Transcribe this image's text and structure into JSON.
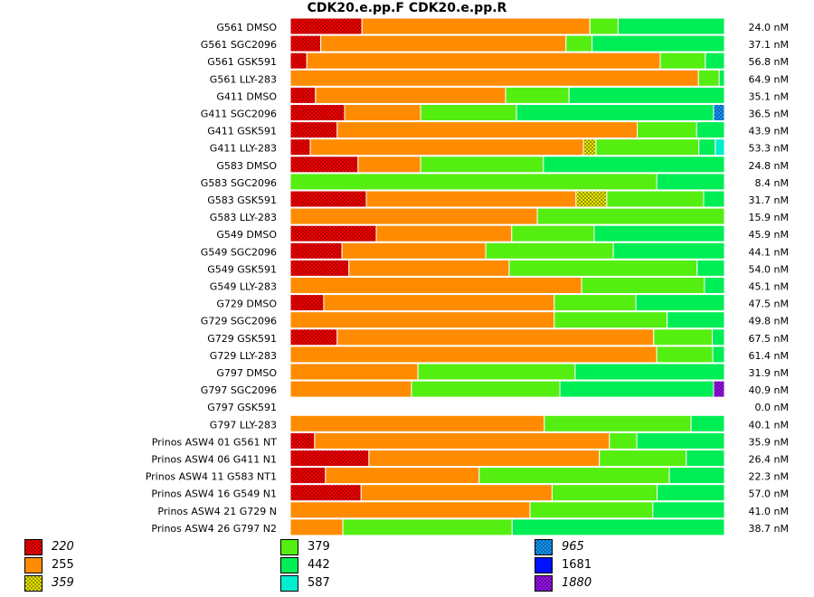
{
  "chart_data": {
    "type": "bar",
    "orientation": "horizontal-stacked-percent",
    "title": "CDK20.e.pp.F  CDK20.e.pp.R",
    "xlim": [
      0,
      100
    ],
    "unit": "nM",
    "legend": [
      {
        "label": "220",
        "color": "#ff0000",
        "pattern": "check",
        "italic": true
      },
      {
        "label": "255",
        "color": "#ff8c00",
        "pattern": "solid",
        "italic": false
      },
      {
        "label": "359",
        "color": "#e6e600",
        "pattern": "check",
        "italic": true
      },
      {
        "label": "379",
        "color": "#55ee11",
        "pattern": "solid",
        "italic": false
      },
      {
        "label": "442",
        "color": "#00ee55",
        "pattern": "solid",
        "italic": false
      },
      {
        "label": "587",
        "color": "#00eecc",
        "pattern": "solid",
        "italic": false
      },
      {
        "label": "965",
        "color": "#1199ff",
        "pattern": "check",
        "italic": true
      },
      {
        "label": "1681",
        "color": "#0011ff",
        "pattern": "solid",
        "italic": false
      },
      {
        "label": "1880",
        "color": "#9911ee",
        "pattern": "check",
        "italic": true
      }
    ],
    "rows": [
      {
        "label": "G561 DMSO",
        "total": "24.0 nM",
        "segments": [
          {
            "k": 0,
            "v": 16.5
          },
          {
            "k": 1,
            "v": 52.5
          },
          {
            "k": 3,
            "v": 6.5
          },
          {
            "k": 4,
            "v": 24.5
          }
        ]
      },
      {
        "label": "G561 SGC2096",
        "total": "37.1 nM",
        "segments": [
          {
            "k": 0,
            "v": 7.0
          },
          {
            "k": 1,
            "v": 56.5
          },
          {
            "k": 3,
            "v": 6.0
          },
          {
            "k": 4,
            "v": 30.5
          }
        ]
      },
      {
        "label": "G561 GSK591",
        "total": "56.8 nM",
        "segments": [
          {
            "k": 0,
            "v": 3.8
          },
          {
            "k": 1,
            "v": 81.4
          },
          {
            "k": 3,
            "v": 10.4
          },
          {
            "k": 4,
            "v": 4.4
          }
        ]
      },
      {
        "label": "G561 LLY-283",
        "total": "64.9 nM",
        "segments": [
          {
            "k": 1,
            "v": 94.0
          },
          {
            "k": 3,
            "v": 4.8
          },
          {
            "k": 4,
            "v": 1.2
          }
        ]
      },
      {
        "label": "G411 DMSO",
        "total": "35.1 nM",
        "segments": [
          {
            "k": 0,
            "v": 5.8
          },
          {
            "k": 1,
            "v": 43.8
          },
          {
            "k": 3,
            "v": 14.6
          },
          {
            "k": 4,
            "v": 35.8
          }
        ]
      },
      {
        "label": "G411 SGC2096",
        "total": "36.5 nM",
        "segments": [
          {
            "k": 0,
            "v": 12.5
          },
          {
            "k": 1,
            "v": 17.5
          },
          {
            "k": 3,
            "v": 22.1
          },
          {
            "k": 4,
            "v": 45.4
          },
          {
            "k": 6,
            "v": 2.5
          }
        ]
      },
      {
        "label": "G411 GSK591",
        "total": "43.9 nM",
        "segments": [
          {
            "k": 0,
            "v": 10.8
          },
          {
            "k": 1,
            "v": 69.1
          },
          {
            "k": 3,
            "v": 13.7
          },
          {
            "k": 4,
            "v": 6.4
          }
        ]
      },
      {
        "label": "G411 LLY-283",
        "total": "53.3 nM",
        "segments": [
          {
            "k": 0,
            "v": 4.6
          },
          {
            "k": 1,
            "v": 62.9
          },
          {
            "k": 2,
            "v": 2.9
          },
          {
            "k": 3,
            "v": 23.7
          },
          {
            "k": 4,
            "v": 3.8
          },
          {
            "k": 5,
            "v": 2.1
          }
        ]
      },
      {
        "label": "G583 DMSO",
        "total": "24.8 nM",
        "segments": [
          {
            "k": 0,
            "v": 15.6
          },
          {
            "k": 1,
            "v": 14.4
          },
          {
            "k": 3,
            "v": 28.3
          },
          {
            "k": 4,
            "v": 41.7
          }
        ]
      },
      {
        "label": "G583 SGC2096",
        "total": "8.4 nM",
        "segments": [
          {
            "k": 3,
            "v": 84.4
          },
          {
            "k": 4,
            "v": 15.6
          }
        ]
      },
      {
        "label": "G583 GSK591",
        "total": "31.7 nM",
        "segments": [
          {
            "k": 0,
            "v": 17.5
          },
          {
            "k": 1,
            "v": 48.3
          },
          {
            "k": 2,
            "v": 7.1
          },
          {
            "k": 3,
            "v": 22.3
          },
          {
            "k": 4,
            "v": 4.8
          }
        ]
      },
      {
        "label": "G583 LLY-283",
        "total": "15.9 nM",
        "segments": [
          {
            "k": 1,
            "v": 56.9
          },
          {
            "k": 3,
            "v": 43.1
          }
        ]
      },
      {
        "label": "G549 DMSO",
        "total": "45.9 nM",
        "segments": [
          {
            "k": 0,
            "v": 19.8
          },
          {
            "k": 1,
            "v": 31.2
          },
          {
            "k": 3,
            "v": 19.0
          },
          {
            "k": 4,
            "v": 30.0
          }
        ]
      },
      {
        "label": "G549 SGC2096",
        "total": "44.1 nM",
        "segments": [
          {
            "k": 0,
            "v": 11.9
          },
          {
            "k": 1,
            "v": 33.1
          },
          {
            "k": 3,
            "v": 29.4
          },
          {
            "k": 4,
            "v": 25.6
          }
        ]
      },
      {
        "label": "G549 GSK591",
        "total": "54.0 nM",
        "segments": [
          {
            "k": 0,
            "v": 13.5
          },
          {
            "k": 1,
            "v": 36.9
          },
          {
            "k": 3,
            "v": 43.3
          },
          {
            "k": 4,
            "v": 6.3
          }
        ]
      },
      {
        "label": "G549 LLY-283",
        "total": "45.1 nM",
        "segments": [
          {
            "k": 1,
            "v": 67.1
          },
          {
            "k": 3,
            "v": 28.3
          },
          {
            "k": 4,
            "v": 4.6
          }
        ]
      },
      {
        "label": "G729 DMSO",
        "total": "47.5 nM",
        "segments": [
          {
            "k": 0,
            "v": 7.7
          },
          {
            "k": 1,
            "v": 53.1
          },
          {
            "k": 3,
            "v": 18.8
          },
          {
            "k": 4,
            "v": 20.4
          }
        ]
      },
      {
        "label": "G729 SGC2096",
        "total": "49.8 nM",
        "segments": [
          {
            "k": 1,
            "v": 60.8
          },
          {
            "k": 3,
            "v": 26.0
          },
          {
            "k": 4,
            "v": 13.2
          }
        ]
      },
      {
        "label": "G729 GSK591",
        "total": "67.5 nM",
        "segments": [
          {
            "k": 0,
            "v": 10.8
          },
          {
            "k": 1,
            "v": 72.9
          },
          {
            "k": 3,
            "v": 13.5
          },
          {
            "k": 4,
            "v": 2.8
          }
        ]
      },
      {
        "label": "G729 LLY-283",
        "total": "61.4 nM",
        "segments": [
          {
            "k": 1,
            "v": 84.4
          },
          {
            "k": 3,
            "v": 12.9
          },
          {
            "k": 4,
            "v": 2.7
          }
        ]
      },
      {
        "label": "G797 DMSO",
        "total": "31.9 nM",
        "segments": [
          {
            "k": 1,
            "v": 29.4
          },
          {
            "k": 3,
            "v": 36.2
          },
          {
            "k": 4,
            "v": 34.4
          }
        ]
      },
      {
        "label": "G797 SGC2096",
        "total": "40.9 nM",
        "segments": [
          {
            "k": 1,
            "v": 27.9
          },
          {
            "k": 3,
            "v": 34.2
          },
          {
            "k": 4,
            "v": 35.4
          },
          {
            "k": 8,
            "v": 2.5
          }
        ]
      },
      {
        "label": "G797 GSK591",
        "total": "0.0 nM",
        "segments": []
      },
      {
        "label": "G797 LLY-283",
        "total": "40.1 nM",
        "segments": [
          {
            "k": 1,
            "v": 58.5
          },
          {
            "k": 3,
            "v": 33.8
          },
          {
            "k": 4,
            "v": 7.7
          }
        ]
      },
      {
        "label": "Prinos ASW4 01 G561 NT",
        "total": "35.9 nM",
        "segments": [
          {
            "k": 0,
            "v": 5.6
          },
          {
            "k": 1,
            "v": 67.9
          },
          {
            "k": 3,
            "v": 6.3
          },
          {
            "k": 4,
            "v": 20.2
          }
        ]
      },
      {
        "label": "Prinos ASW4 06 G411 N1",
        "total": "26.4 nM",
        "segments": [
          {
            "k": 0,
            "v": 18.1
          },
          {
            "k": 1,
            "v": 53.1
          },
          {
            "k": 3,
            "v": 20.0
          },
          {
            "k": 4,
            "v": 8.8
          }
        ]
      },
      {
        "label": "Prinos ASW4 11 G583 NT1",
        "total": "22.3 nM",
        "segments": [
          {
            "k": 0,
            "v": 8.1
          },
          {
            "k": 1,
            "v": 35.4
          },
          {
            "k": 3,
            "v": 43.8
          },
          {
            "k": 4,
            "v": 12.7
          }
        ]
      },
      {
        "label": "Prinos ASW4 16 G549 N1",
        "total": "57.0 nM",
        "segments": [
          {
            "k": 0,
            "v": 16.3
          },
          {
            "k": 1,
            "v": 44.0
          },
          {
            "k": 3,
            "v": 24.2
          },
          {
            "k": 4,
            "v": 15.5
          }
        ]
      },
      {
        "label": "Prinos ASW4 21 G729 N",
        "total": "41.0 nM",
        "segments": [
          {
            "k": 1,
            "v": 55.2
          },
          {
            "k": 3,
            "v": 28.3
          },
          {
            "k": 4,
            "v": 16.5
          }
        ]
      },
      {
        "label": "Prinos ASW4 26 G797 N2",
        "total": "38.7 nM",
        "segments": [
          {
            "k": 1,
            "v": 12.1
          },
          {
            "k": 3,
            "v": 39.0
          },
          {
            "k": 4,
            "v": 48.9
          }
        ]
      }
    ]
  }
}
